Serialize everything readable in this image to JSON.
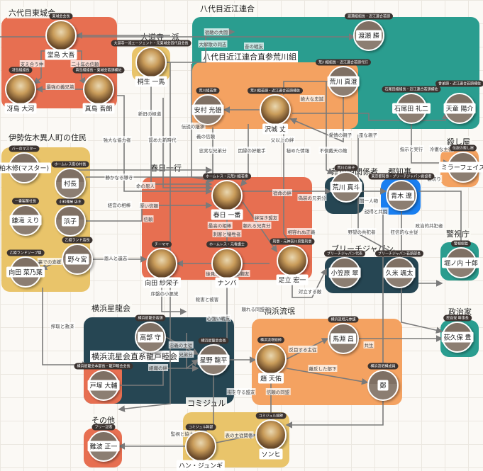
{
  "colors": {
    "red": "#e76f51",
    "teal": "#2a9d8f",
    "orange": "#f4a261",
    "yellow": "#e9c46a",
    "navy": "#264653",
    "blue": "#1a7ff0",
    "edge": "#7a7a7a"
  },
  "groups": [
    {
      "label": "六代目東城会",
      "color": "#e76f51"
    },
    {
      "label": "大道寺一派",
      "color": "#e9c46a"
    },
    {
      "label": "八代目近江連合",
      "color": "#2a9d8f"
    },
    {
      "label": "八代目近江連合直参荒川組",
      "color": "#f4a261"
    },
    {
      "label": "伊勢佐木異人町の住民",
      "color": "#e9c46a"
    },
    {
      "label": "春日一行",
      "color": "#e76f51"
    },
    {
      "label": "荒川組関係者",
      "color": "#264653"
    },
    {
      "label": "都知事",
      "color": "#1a7ff0"
    },
    {
      "label": "殺し屋",
      "color": "#f4a261"
    },
    {
      "label": "ブリーチジャパン",
      "color": "#264653"
    },
    {
      "label": "警視庁",
      "color": "#2a9d8f"
    },
    {
      "label": "横浜星龍会",
      "color": "#264653"
    },
    {
      "label": "横浜流星会直系龍戸睦会",
      "color": "#e76f51"
    },
    {
      "label": "横浜流氓",
      "color": "#f4a261"
    },
    {
      "label": "政治家",
      "color": "#2a9d8f"
    },
    {
      "label": "コミジュル",
      "color": "#e9c46a"
    },
    {
      "label": "その他",
      "color": "#e76f51"
    }
  ],
  "nodes": [
    {
      "name": "堂島 大吾",
      "role": "東城会会長",
      "photo": true
    },
    {
      "name": "冴島 大河",
      "role": "冴島組組長",
      "photo": true
    },
    {
      "name": "真島 吾朗",
      "role": "真島組組長・東城会若頭補佐",
      "photo": true
    },
    {
      "name": "桐生 一馬",
      "role": "大道寺一派エージェント・元東城会四代目会長",
      "photo": true
    },
    {
      "name": "渡瀬 勝",
      "role": "渡瀬組組長・近江連合若頭",
      "photo": false
    },
    {
      "name": "荒川 真澄",
      "role": "荒川組組長・近江連合若頭代行",
      "photo": false
    },
    {
      "name": "安村 光雄",
      "role": "荒川組若衆",
      "photo": false
    },
    {
      "name": "沢城 丈",
      "role": "荒川組若頭・近江連合若頭補佐",
      "photo": true
    },
    {
      "name": "石尾田 礼二",
      "role": "石尾田組組長・近江連合若頭補佐",
      "photo": false
    },
    {
      "name": "天童 陽介",
      "role": "舎弟頭・近江連合若頭補佐",
      "photo": false
    },
    {
      "name": "ミラーフェイス",
      "role": "伝説の殺し屋",
      "photo": false
    },
    {
      "name": "荒川 真斗",
      "role": "荒川の息子",
      "photo": false
    },
    {
      "name": "青木 遼",
      "role": "東京都知事・ブリーチジャパン創設者",
      "photo": false
    },
    {
      "name": "小笠原 翠",
      "role": "ブリーチジャパン代表",
      "photo": false
    },
    {
      "name": "久米 颯太",
      "role": "ブリーチジャパン若頭部長",
      "photo": false
    },
    {
      "name": "堀ノ内 十郎",
      "role": "警視総監",
      "photo": false
    },
    {
      "name": "荻久保 豊",
      "role": "民自党 幹事長",
      "photo": false
    },
    {
      "name": "柏木修(マスター)",
      "role": "バーのマスター",
      "photo": false
    },
    {
      "name": "村長",
      "role": "ホームレス街の村長",
      "photo": false
    },
    {
      "name": "鎌滝 えり",
      "role": "一番製菓社長",
      "photo": false
    },
    {
      "name": "浜子",
      "role": "小料理屋 店主",
      "photo": false
    },
    {
      "name": "野々宮",
      "role": "乙姫ランド店長",
      "photo": false
    },
    {
      "name": "向田 菜乃葉",
      "role": "乙姫ランドソープ嬢",
      "photo": false
    },
    {
      "name": "春日 一番",
      "role": "ホームレス・元荒川組若衆",
      "photo": true
    },
    {
      "name": "向田 紗栄子",
      "role": "チーママ",
      "photo": true
    },
    {
      "name": "ナンバ",
      "role": "ホームレス・元看護士",
      "photo": true
    },
    {
      "name": "足立 宏一",
      "role": "刑事・元神奈川県警刑事",
      "photo": true
    },
    {
      "name": "高部 守",
      "role": "横浜星龍会若頭",
      "photo": false
    },
    {
      "name": "星野 龍平",
      "role": "横浜星龍会会長",
      "photo": false
    },
    {
      "name": "戸塚 大輔",
      "role": "横浜星龍会本部長・龍戸睦会会長",
      "photo": false
    },
    {
      "name": "馬淵 昌",
      "role": "横浜流氓元参謀",
      "photo": false
    },
    {
      "name": "趙 天佑",
      "role": "横浜流氓総帥",
      "photo": true
    },
    {
      "name": "鄭",
      "role": "横浜流氓構成員",
      "photo": false
    },
    {
      "name": "難波 正一",
      "role": "フリー記者",
      "photo": false
    },
    {
      "name": "ハン・ジュンギ",
      "role": "コミジュル幹部",
      "photo": true
    },
    {
      "name": "ソンヒ",
      "role": "コミジュル総帥",
      "photo": true
    }
  ],
  "edge_labels": [
    "支え合う仲",
    "二十年の信頼",
    "最強の義兄弟",
    "宿敵の共闘",
    "昔の戦友",
    "大解散の同志",
    "新旧の極道",
    "強大な協力者",
    "認めた新時代",
    "伝説の継承",
    "義の信頼",
    "父以上の絆",
    "絶大な忠誠",
    "愛情の親子",
    "歪な親子",
    "忠実な兄弟分",
    "因縁の好敵手",
    "秘めた情報",
    "不倶戴天の敵",
    "指示と実行",
    "冷徹な主従",
    "裏切り",
    "静かなる導き",
    "命の恩人",
    "経営の相棒",
    "厚い信頼",
    "信頼",
    "宿命の絆",
    "偽装の兄弟分",
    "同一人物",
    "説得と共闘",
    "政治的共犯者",
    "絆深き盟友",
    "最高の相棒",
    "頼れる兄貴分",
    "刺客と犠牲者",
    "相容れぬ正義",
    "野望の共犯者",
    "狂信的な主従",
    "恩人と遺志",
    "裏での支援",
    "序盤の小悪党",
    "後見人",
    "共闘する親友",
    "対立する敵",
    "殺害と被害",
    "心強い戦友",
    "頼れる同盟者",
    "搾取と救済",
    "忠義の主従",
    "兄弟分",
    "組織の絆",
    "街を守る盟友",
    "信頼の同盟",
    "反目する主従",
    "共生",
    "離反した部下",
    "監視と協力",
    "表の主従関係"
  ]
}
